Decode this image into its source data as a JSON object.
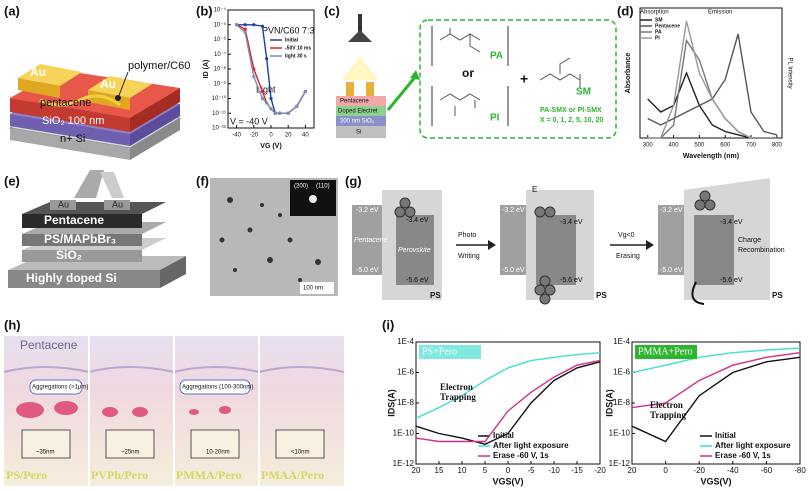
{
  "panel_labels": [
    "(a)",
    "(b)",
    "(c)",
    "(d)",
    "(e)",
    "(f)",
    "(g)",
    "(h)",
    "(i)"
  ],
  "a": {
    "au": "Au",
    "polymer": "polymer/C60",
    "pentacene": "pentacene",
    "sio2": "SiO₂ 100 nm",
    "si": "n+ Si"
  },
  "b": {
    "title": "PVN/C60 7:3",
    "light": "Light",
    "bias": "V = -40 V",
    "chart": {
      "type": "line",
      "xlabel": "VG (V)",
      "ylabel": "ID (A)",
      "log_y": true,
      "x": [
        -40,
        -30,
        -20,
        -10,
        -5,
        0,
        5,
        10,
        20,
        30,
        40
      ],
      "xlim": [
        -50,
        50
      ],
      "xticks": [
        -40,
        -20,
        0,
        20,
        40
      ],
      "ylim": [
        1e-12,
        0.0001
      ],
      "yticks": [
        {
          "value": 0.0001,
          "label": "10⁻⁴"
        },
        {
          "value": 1e-05,
          "label": "10⁻⁵"
        },
        {
          "value": 1e-06,
          "label": "10⁻⁶"
        },
        {
          "value": 1e-07,
          "label": "10⁻⁷"
        },
        {
          "value": 1e-08,
          "label": "10⁻⁸"
        },
        {
          "value": 1e-09,
          "label": "10⁻⁹"
        },
        {
          "value": 1e-10,
          "label": "10⁻¹⁰"
        },
        {
          "value": 1e-11,
          "label": "10⁻¹¹"
        },
        {
          "value": 1e-12,
          "label": "10⁻¹²"
        }
      ],
      "series": [
        {
          "name": "Initial",
          "color": "#1f3f9e",
          "values": [
            1e-05,
            1e-05,
            1e-05,
            8e-06,
            5e-08,
            1e-10,
            1e-11,
            1e-11,
            1e-11,
            3e-11,
            3e-10
          ]
        },
        {
          "name": "-50V 10 ms",
          "color": "#e0202a",
          "values": [
            1e-05,
            5e-06,
            1e-08,
            3e-10,
            5e-11,
            2e-11,
            1e-11,
            1e-11,
            1e-11,
            3e-11,
            3e-10
          ]
        },
        {
          "name": "light 30 s",
          "color": "#7a8fb8",
          "values": [
            1e-05,
            3e-06,
            3e-09,
            1e-10,
            5e-11,
            2e-11,
            1e-11,
            1e-11,
            1e-11,
            3e-11,
            3e-10
          ]
        }
      ]
    }
  },
  "c": {
    "pentacene": "Pentacene",
    "electret": "Doped Electret",
    "sio2": "300 nm SiO₂",
    "si": "Si",
    "pa": "PA",
    "or": "or",
    "pi": "PI",
    "plus": "+",
    "sm": "SM",
    "blend": "PA-SMX or PI-SMX",
    "ratio": "X = 0, 1, 2, 5, 10, 20"
  },
  "d": {
    "absorption": "Absorption",
    "emission": "Emission",
    "chart": {
      "type": "line",
      "xlabel": "Wavelength (nm)",
      "ylabel": "Absorbance",
      "y2label": "PL Intensity",
      "x": [
        300,
        350,
        400,
        450,
        500,
        550,
        600,
        650,
        700,
        750,
        800
      ],
      "xlim": [
        270,
        820
      ],
      "xticks": [
        300,
        400,
        500,
        600,
        700,
        800
      ],
      "ylim": [
        0,
        2
      ],
      "series": [
        {
          "name": "SM",
          "color": "#222222",
          "values": [
            0.6,
            0.4,
            0.5,
            1.0,
            0.5,
            0.2,
            0.1,
            0.05,
            0,
            0,
            0
          ]
        },
        {
          "name": "Pentacene",
          "color": "#555555",
          "values": [
            0.3,
            0.2,
            0.3,
            0.4,
            0.5,
            0.6,
            0.9,
            1.6,
            0.4,
            0.1,
            0.05
          ]
        },
        {
          "name": "PA",
          "color": "#777777",
          "values": [
            0,
            0,
            0.2,
            1.5,
            1.2,
            0.6,
            0.3,
            0.1,
            0,
            0,
            0
          ]
        },
        {
          "name": "PI",
          "color": "#999999",
          "values": [
            0,
            0,
            0.5,
            1.8,
            1.0,
            0.6,
            0.3,
            0.1,
            0,
            0,
            0
          ]
        }
      ]
    }
  },
  "e": {
    "au": "Au",
    "pentacene": "Pentacene",
    "ps": "PS/MAPbBr₃",
    "sio2": "SiO₂",
    "si": "Highly doped Si"
  },
  "f": {
    "d200": "(200)",
    "d110": "(110)",
    "scale": "100 nm"
  },
  "g": {
    "lumo_p": "-3.2 eV",
    "lumo_k": "-3.4 eV",
    "homo_p": "-5.0 eV",
    "homo_k": "-5.6 eV",
    "pentacene": "Pentacene",
    "perovskite": "Perovskite",
    "ps": "PS",
    "photo": "Photo",
    "writing": "Writing",
    "field": "E",
    "vg": "Vg<0",
    "erasing": "Erasing",
    "charge": "Charge",
    "recomb": "Recombination"
  },
  "h": {
    "pentacene": "Pentacene",
    "agg1": "Aggregations (>1μm)",
    "agg2": "Aggregations (100-300nm)",
    "sizes": [
      "~35nm",
      "~25nm",
      "10-20nm",
      "<10nm"
    ],
    "names": [
      "PS/Pero",
      "PVPh/Pero",
      "PMMA/Pero",
      "PMAA/Pero"
    ]
  },
  "i": {
    "trapping1": "Electron",
    "trapping2": "Trapping",
    "charts": [
      {
        "type": "line",
        "tag": "PS+Pero",
        "xlabel": "VGS(V)",
        "ylabel": "IDS(A)",
        "log_y": true,
        "x": [
          20,
          15,
          10,
          5,
          0,
          -5,
          -10,
          -15,
          -20
        ],
        "xlim": [
          20,
          -20
        ],
        "xticks": [
          20,
          15,
          10,
          5,
          0,
          -5,
          -10,
          -15,
          -20
        ],
        "ylim": [
          1e-12,
          0.0001
        ],
        "yticks": [
          {
            "value": 0.0001,
            "label": "1E-4"
          },
          {
            "value": 1e-06,
            "label": "1E-6"
          },
          {
            "value": 1e-08,
            "label": "1E-8"
          },
          {
            "value": 1e-10,
            "label": "1E-10"
          },
          {
            "value": 1e-12,
            "label": "1E-12"
          }
        ],
        "series": [
          {
            "name": "Initial",
            "color": "#111111",
            "values": [
              3e-10,
              1e-10,
              5e-11,
              2e-11,
              1e-10,
              1e-08,
              3e-07,
              2e-06,
              5e-06
            ]
          },
          {
            "name": "After light exposure",
            "color": "#3fe0d0",
            "values": [
              1e-09,
              5e-09,
              3e-08,
              3e-07,
              2e-06,
              6e-06,
              1e-05,
              1.5e-05,
              2e-05
            ]
          },
          {
            "name": "Erase -60 V, 1s",
            "color": "#d0308a",
            "values": [
              5e-11,
              3e-11,
              3e-11,
              3e-11,
              3e-09,
              5e-08,
              5e-07,
              3e-06,
              6e-06
            ]
          }
        ]
      },
      {
        "type": "line",
        "tag": "PMMA+Pero",
        "xlabel": "VGS(V)",
        "ylabel": "IDS(A)",
        "log_y": true,
        "x": [
          20,
          0,
          -20,
          -40,
          -60,
          -80
        ],
        "xlim": [
          20,
          -80
        ],
        "xticks": [
          20,
          0,
          -20,
          -40,
          -60,
          -80
        ],
        "ylim": [
          1e-12,
          0.0001
        ],
        "yticks": [
          {
            "value": 0.0001,
            "label": "1E-4"
          },
          {
            "value": 1e-06,
            "label": "1E-6"
          },
          {
            "value": 1e-08,
            "label": "1E-8"
          },
          {
            "value": 1e-10,
            "label": "1E-10"
          },
          {
            "value": 1e-12,
            "label": "1E-12"
          }
        ],
        "series": [
          {
            "name": "Initial",
            "color": "#111111",
            "values": [
              3e-10,
              3e-11,
              3e-08,
              1e-06,
              5e-06,
              1e-05
            ]
          },
          {
            "name": "After light exposure",
            "color": "#3fe0d0",
            "values": [
              1e-06,
              3e-06,
              1e-05,
              2e-05,
              3e-05,
              4e-05
            ]
          },
          {
            "name": "Erase -60 V, 1s",
            "color": "#d0308a",
            "values": [
              5e-09,
              1e-08,
              3e-07,
              3e-06,
              1e-05,
              2e-05
            ]
          }
        ]
      }
    ]
  }
}
